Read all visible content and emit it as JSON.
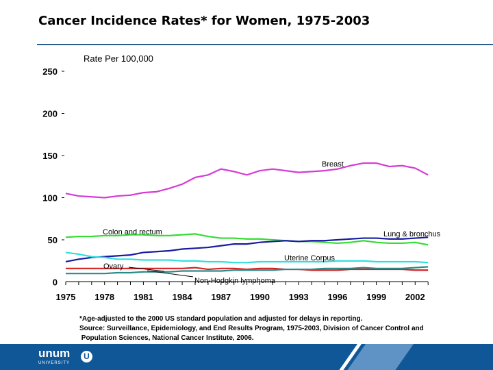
{
  "chart_data": {
    "type": "line",
    "title": "Cancer Incidence Rates* for Women, 1975-2003",
    "ylabel": "Rate Per 100,000",
    "xlabel": "",
    "ylim": [
      0,
      250
    ],
    "xlim": [
      1975,
      2003
    ],
    "yticks": [
      "0",
      "50",
      "100",
      "150",
      "200",
      "250"
    ],
    "xticks": [
      "1975",
      "1978",
      "1981",
      "1984",
      "1987",
      "1990",
      "1993",
      "1996",
      "1999",
      "2002"
    ],
    "x": [
      1975,
      1976,
      1977,
      1978,
      1979,
      1980,
      1981,
      1982,
      1983,
      1984,
      1985,
      1986,
      1987,
      1988,
      1989,
      1990,
      1991,
      1992,
      1993,
      1994,
      1995,
      1996,
      1997,
      1998,
      1999,
      2000,
      2001,
      2002,
      2003
    ],
    "grid": false,
    "series": [
      {
        "name": "Breast",
        "color": "#d63ad6",
        "values": [
          105,
          102,
          101,
          100,
          102,
          103,
          106,
          107,
          111,
          116,
          124,
          127,
          134,
          131,
          127,
          132,
          134,
          132,
          130,
          131,
          132,
          134,
          138,
          141,
          141,
          137,
          138,
          135,
          127
        ]
      },
      {
        "name": "Colon and rectum",
        "color": "#33dd33",
        "values": [
          53,
          54,
          54,
          55,
          55,
          56,
          56,
          55,
          55,
          56,
          57,
          54,
          52,
          52,
          51,
          51,
          50,
          49,
          48,
          48,
          47,
          46,
          47,
          49,
          47,
          46,
          46,
          47,
          44
        ]
      },
      {
        "name": "Lung & bronchus",
        "color": "#1a1aa0",
        "values": [
          24,
          27,
          29,
          30,
          31,
          32,
          35,
          36,
          37,
          39,
          40,
          41,
          43,
          45,
          45,
          47,
          48,
          49,
          48,
          49,
          49,
          50,
          51,
          52,
          52,
          51,
          51,
          52,
          53
        ]
      },
      {
        "name": "Uterine Corpus",
        "color": "#33dddd",
        "values": [
          35,
          33,
          30,
          29,
          27,
          27,
          26,
          26,
          26,
          25,
          25,
          24,
          24,
          23,
          23,
          24,
          24,
          24,
          24,
          24,
          24,
          25,
          25,
          25,
          24,
          24,
          24,
          24,
          23
        ]
      },
      {
        "name": "Ovary",
        "color": "#d62020",
        "values": [
          16,
          16,
          16,
          16,
          16,
          16,
          16,
          16,
          16,
          16,
          17,
          15,
          16,
          16,
          15,
          16,
          16,
          15,
          15,
          14,
          14,
          14,
          15,
          15,
          15,
          15,
          15,
          14,
          14
        ]
      },
      {
        "name": "Non-Hodgkin lymphoma",
        "color": "#2a8a8a",
        "values": [
          10,
          10,
          10,
          10,
          11,
          11,
          12,
          12,
          12,
          13,
          13,
          13,
          13,
          14,
          14,
          14,
          14,
          15,
          15,
          15,
          16,
          16,
          16,
          17,
          16,
          16,
          16,
          17,
          18
        ]
      }
    ],
    "labels": [
      "Breast",
      "Colon and rectum",
      "Lung & bronchus",
      "Uterine Corpus",
      "Ovary",
      "Non-Hodgkin lymphoma"
    ]
  },
  "footnote": "*Age-adjusted to the 2000 US standard population and adjusted for delays in reporting.",
  "source1": "Source: Surveillance, Epidemiology, and End Results Program, 1975-2003, Division of Cancer Control and",
  "source2": " Population Sciences, National Cancer Institute, 2006.",
  "logo": {
    "name": "unum",
    "sub": "UNIVERSITY",
    "mark": "U"
  }
}
